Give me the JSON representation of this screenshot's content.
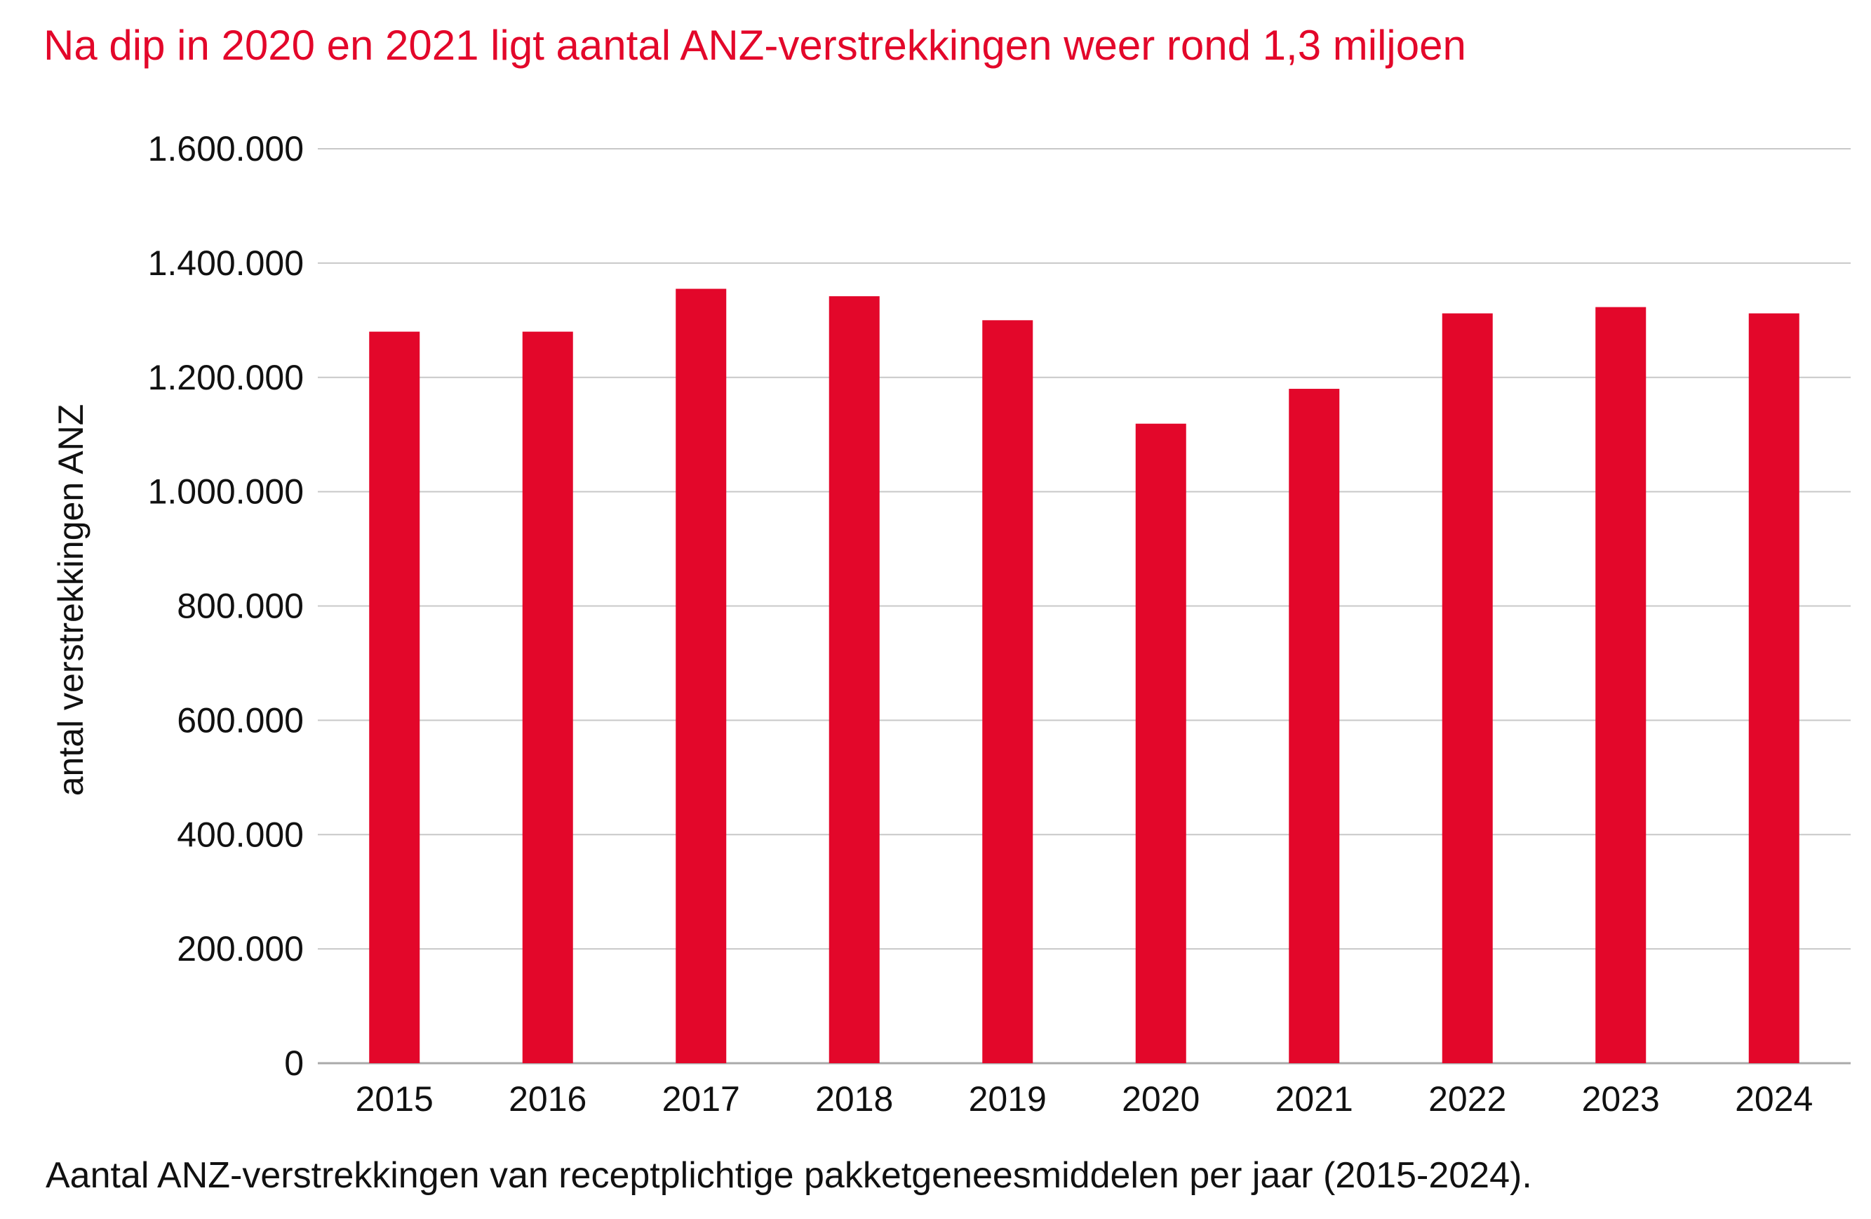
{
  "chart_data": {
    "type": "bar",
    "title": "Na dip in 2020 en 2021 ligt aantal ANZ-verstrekkingen weer rond 1,3 miljoen",
    "caption": "Aantal ANZ-verstrekkingen van receptplichtige pakketgeneesmiddelen per jaar (2015-2024).",
    "xlabel": "",
    "ylabel": "antal verstrekkingen ANZ",
    "categories": [
      "2015",
      "2016",
      "2017",
      "2018",
      "2019",
      "2020",
      "2021",
      "2022",
      "2023",
      "2024"
    ],
    "values": [
      1280000,
      1280000,
      1355000,
      1342000,
      1300000,
      1119000,
      1180000,
      1312000,
      1323000,
      1312000
    ],
    "ylim": [
      0,
      1600000
    ],
    "yticks": [
      0,
      200000,
      400000,
      600000,
      800000,
      1000000,
      1200000,
      1400000,
      1600000
    ],
    "ytick_labels": [
      "0",
      "200.000",
      "400.000",
      "600.000",
      "800.000",
      "1.000.000",
      "1.200.000",
      "1.400.000",
      "1.600.000"
    ],
    "grid": true,
    "colors": {
      "bar": "#e3072a",
      "grid": "#c8c8c8",
      "title": "#e3072a"
    }
  }
}
